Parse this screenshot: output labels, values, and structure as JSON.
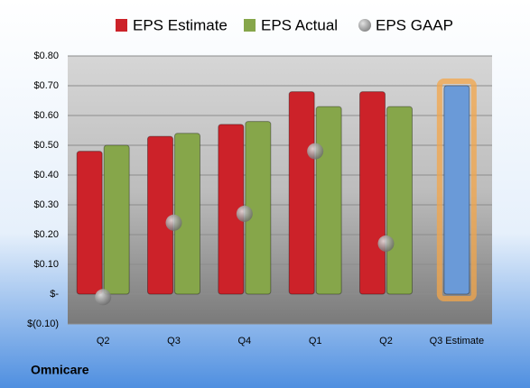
{
  "chart_data": {
    "type": "bar",
    "title": "Omnicare",
    "categories": [
      "Q2",
      "Q3",
      "Q4",
      "Q1",
      "Q2",
      "Q3 Estimate"
    ],
    "series": [
      {
        "name": "EPS Estimate",
        "color": "#cc2229",
        "values": [
          0.48,
          0.53,
          0.57,
          0.68,
          0.68,
          0.7
        ],
        "colors": [
          "#cc2229",
          "#cc2229",
          "#cc2229",
          "#cc2229",
          "#cc2229",
          "#6a9ad8"
        ]
      },
      {
        "name": "EPS Actual",
        "color": "#86a64a",
        "values": [
          0.5,
          0.54,
          0.58,
          0.63,
          0.63,
          null
        ]
      },
      {
        "name": "EPS GAAP",
        "color": "#8a8a8a",
        "marker": "circle",
        "values": [
          -0.01,
          0.24,
          0.27,
          0.48,
          0.17,
          null
        ]
      }
    ],
    "ylim": [
      -0.1,
      0.8
    ],
    "yticks": [
      {
        "value": 0.8,
        "label": "$0.80"
      },
      {
        "value": 0.7,
        "label": "$0.70"
      },
      {
        "value": 0.6,
        "label": "$0.60"
      },
      {
        "value": 0.5,
        "label": "$0.50"
      },
      {
        "value": 0.4,
        "label": "$0.40"
      },
      {
        "value": 0.3,
        "label": "$0.30"
      },
      {
        "value": 0.2,
        "label": "$0.20"
      },
      {
        "value": 0.1,
        "label": "$0.10"
      },
      {
        "value": 0,
        "label": "$-"
      },
      {
        "value": -0.1,
        "label": "$(0.10)"
      }
    ],
    "grid": true,
    "legend": "top"
  }
}
